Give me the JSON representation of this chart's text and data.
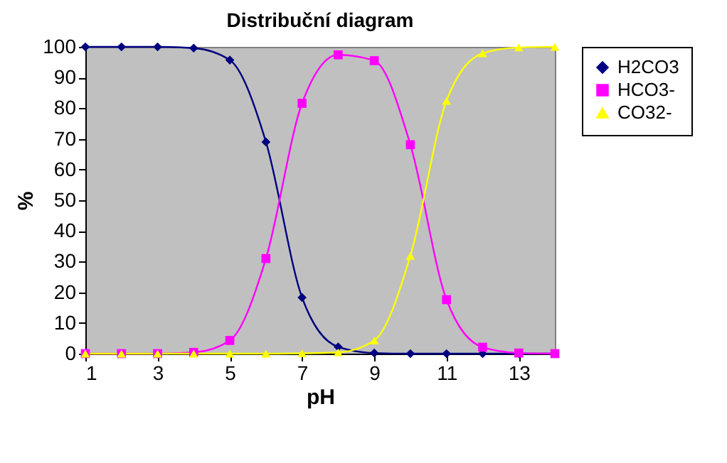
{
  "chart_data": {
    "type": "line",
    "title": "Distribuční diagram",
    "xlabel": "pH",
    "ylabel": "%",
    "x": [
      1,
      2,
      3,
      4,
      5,
      6,
      7,
      8,
      9,
      10,
      11,
      12,
      13,
      14
    ],
    "series": [
      {
        "name": "H2CO3",
        "color": "#000080",
        "marker": "diamond",
        "values": [
          100,
          100,
          100,
          99.6,
          95.7,
          69,
          18.3,
          2.2,
          0.2,
          0,
          0,
          0,
          0,
          0
        ]
      },
      {
        "name": "HCO3-",
        "color": "#ff00ff",
        "marker": "square",
        "values": [
          0,
          0,
          0,
          0.4,
          4.3,
          31,
          81.6,
          97.4,
          95.5,
          68.1,
          17.6,
          2.1,
          0.2,
          0
        ]
      },
      {
        "name": "CO32-",
        "color": "#ffff00",
        "marker": "triangle",
        "values": [
          0,
          0,
          0,
          0,
          0,
          0,
          0.1,
          0.4,
          4.3,
          31.9,
          82.4,
          97.9,
          99.8,
          100
        ]
      }
    ],
    "xlim": [
      1,
      14
    ],
    "xticks": [
      1,
      3,
      5,
      7,
      9,
      11,
      13
    ],
    "ylim": [
      0,
      100
    ],
    "yticks": [
      0,
      10,
      20,
      30,
      40,
      50,
      60,
      70,
      80,
      90,
      100
    ],
    "legend": "right"
  }
}
